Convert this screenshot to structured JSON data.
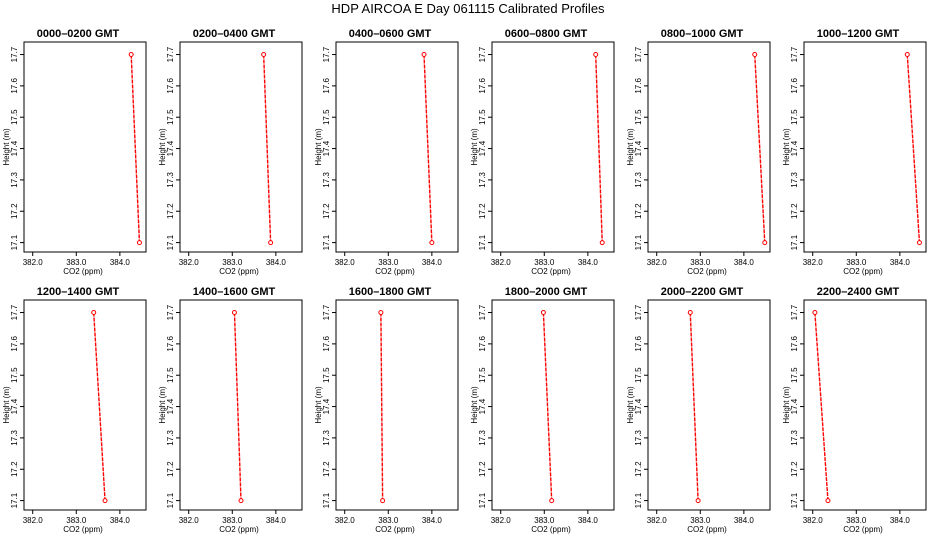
{
  "title": "HDP  AIRCOA E  Day 061115  Calibrated Profiles",
  "chart_data": {
    "type": "line",
    "layout": "2 rows x 6 panels",
    "xlabel": "CO2 (ppm)",
    "ylabel": "Height (m)",
    "xlim": [
      381.8,
      384.6
    ],
    "ylim": [
      17.07,
      17.74
    ],
    "xticks": [
      382.0,
      383.0,
      384.0
    ],
    "xtick_labels": [
      "382.0",
      "383.0",
      "384.0"
    ],
    "yticks": [
      17.1,
      17.2,
      17.3,
      17.4,
      17.5,
      17.6,
      17.7
    ],
    "ytick_labels": [
      "17.1",
      "17.2",
      "17.3",
      "17.4",
      "17.5",
      "17.6",
      "17.7"
    ],
    "colors": {
      "line": "#ff0000",
      "marker": "#ff0000",
      "axis": "#000000"
    },
    "panels": [
      {
        "title": "0000–0200 GMT",
        "x": [
          384.26,
          384.45
        ],
        "y": [
          17.7,
          17.1
        ]
      },
      {
        "title": "0200–0400 GMT",
        "x": [
          383.72,
          383.88
        ],
        "y": [
          17.7,
          17.1
        ]
      },
      {
        "title": "0400–0600 GMT",
        "x": [
          383.82,
          384.0
        ],
        "y": [
          17.7,
          17.1
        ]
      },
      {
        "title": "0600–0800 GMT",
        "x": [
          384.18,
          384.33
        ],
        "y": [
          17.7,
          17.1
        ]
      },
      {
        "title": "0800–1000 GMT",
        "x": [
          384.25,
          384.48
        ],
        "y": [
          17.7,
          17.1
        ]
      },
      {
        "title": "1000–1200 GMT",
        "x": [
          384.17,
          384.45
        ],
        "y": [
          17.7,
          17.1
        ]
      },
      {
        "title": "1200–1400 GMT",
        "x": [
          383.4,
          383.66
        ],
        "y": [
          17.7,
          17.1
        ]
      },
      {
        "title": "1400–1600 GMT",
        "x": [
          383.05,
          383.2
        ],
        "y": [
          17.7,
          17.1
        ]
      },
      {
        "title": "1600–1800 GMT",
        "x": [
          382.83,
          382.87
        ],
        "y": [
          17.7,
          17.1
        ]
      },
      {
        "title": "1800–2000 GMT",
        "x": [
          382.98,
          383.17
        ],
        "y": [
          17.7,
          17.1
        ]
      },
      {
        "title": "2000–2200 GMT",
        "x": [
          382.77,
          382.95
        ],
        "y": [
          17.7,
          17.1
        ]
      },
      {
        "title": "2200–2400 GMT",
        "x": [
          382.05,
          382.35
        ],
        "y": [
          17.7,
          17.1
        ]
      }
    ]
  }
}
